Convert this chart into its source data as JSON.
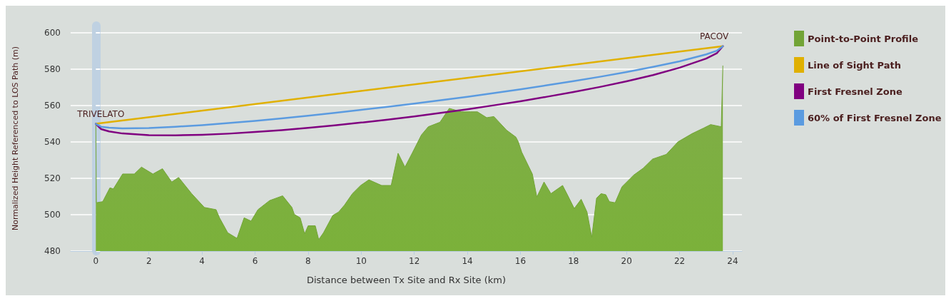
{
  "chart_data": {
    "type": "line",
    "xlabel": "Distance between Tx Site and Rx Site (km)",
    "ylabel": "Normalized Height Referenced to LOS Path (m)",
    "xlim": [
      -0.95,
      24.35
    ],
    "xticks": [
      0,
      2,
      4,
      6,
      8,
      10,
      12,
      14,
      16,
      18,
      20,
      22,
      24
    ],
    "ylim": [
      480,
      604
    ],
    "yticks": [
      480,
      500,
      520,
      540,
      560,
      580,
      600
    ],
    "grid": "y",
    "legend": "right",
    "marker": "none",
    "line_style": "solid",
    "annotations": [
      {
        "text": "TRIVELATO",
        "x": 0,
        "y": 550
      },
      {
        "text": "PACOV",
        "x": 23.63,
        "y": 592.7
      }
    ],
    "series": [
      {
        "name": "Point-to-Point Profile",
        "type": "area",
        "color": "#72a436",
        "x": [
          0,
          0.02,
          0.26,
          0.53,
          0.66,
          1.01,
          1.45,
          1.72,
          2.15,
          2.51,
          2.86,
          3.12,
          3.61,
          4.09,
          4.53,
          4.66,
          4.97,
          5.32,
          5.59,
          5.85,
          6.11,
          6.55,
          7.04,
          7.39,
          7.48,
          7.7,
          7.87,
          8.0,
          8.27,
          8.4,
          8.58,
          8.93,
          9.15,
          9.37,
          9.67,
          9.98,
          10.29,
          10.77,
          11.13,
          11.39,
          11.65,
          11.92,
          12.27,
          12.53,
          12.97,
          13.32,
          13.77,
          14.12,
          14.38,
          14.73,
          15.0,
          15.48,
          15.83,
          15.92,
          16.05,
          16.45,
          16.62,
          16.89,
          17.15,
          17.59,
          17.77,
          18.03,
          18.29,
          18.51,
          18.69,
          18.87,
          19.04,
          19.22,
          19.35,
          19.57,
          19.83,
          20.27,
          20.63,
          20.98,
          21.5,
          21.94,
          22.47,
          22.91,
          23.17,
          23.57,
          23.63
        ],
        "values": [
          550,
          506.6,
          507.2,
          514.8,
          514.2,
          522.4,
          522.4,
          526.2,
          522.4,
          525.3,
          518,
          520.5,
          511.6,
          504,
          502.8,
          498.3,
          490.1,
          487,
          498.3,
          496.5,
          502.8,
          507.8,
          510.4,
          504,
          500.2,
          498.3,
          489.5,
          493.9,
          493.9,
          486.3,
          490.1,
          499.6,
          501.5,
          505.3,
          511.6,
          516.1,
          519.2,
          516.1,
          516.1,
          533.8,
          526.2,
          533.8,
          543.9,
          548.4,
          550.9,
          558.5,
          556.6,
          556.6,
          556.6,
          553.4,
          554,
          546.5,
          542.7,
          540.1,
          534.4,
          522.4,
          509.7,
          518,
          511.6,
          516.1,
          511,
          503.4,
          508.5,
          501.5,
          487.6,
          509.1,
          511.6,
          511,
          507.2,
          506.6,
          515.4,
          521.8,
          525.6,
          530.6,
          533.2,
          540.1,
          544.6,
          547.7,
          549.6,
          548.4,
          581.9
        ]
      },
      {
        "name": "Line of Sight Path",
        "color": "#e0b000",
        "x": [
          0,
          23.63
        ],
        "values": [
          550,
          592.7
        ]
      },
      {
        "name": "First Fresnel Zone",
        "color": "#800080",
        "x": [
          0,
          0.2,
          0.5,
          1,
          2,
          3,
          4,
          5,
          6,
          7,
          8,
          9,
          10,
          11,
          12,
          13,
          14,
          15,
          16,
          17,
          18,
          19,
          20,
          21,
          22,
          23,
          23.4,
          23.63
        ],
        "values": [
          550,
          547.1,
          545.8,
          544.7,
          543.8,
          543.7,
          544.0,
          544.6,
          545.5,
          546.5,
          547.8,
          549.2,
          550.7,
          552.3,
          554.1,
          556.0,
          558.0,
          560.2,
          562.4,
          564.9,
          567.5,
          570.3,
          573.4,
          576.8,
          580.9,
          585.9,
          588.8,
          592.7
        ]
      },
      {
        "name": "60% of First Fresnel Zone",
        "color": "#5b9be0",
        "x": [
          0,
          0.2,
          0.5,
          1,
          2,
          3,
          4,
          5,
          6,
          7,
          8,
          9,
          10,
          11,
          12,
          13,
          14,
          15,
          16,
          17,
          18,
          19,
          20,
          21,
          22,
          23,
          23.4,
          23.63
        ],
        "values": [
          550,
          548.4,
          547.9,
          547.5,
          547.7,
          548.4,
          549.3,
          550.4,
          551.6,
          553.0,
          554.5,
          556.0,
          557.7,
          559.4,
          561.1,
          563.0,
          564.9,
          566.9,
          569.0,
          571.2,
          573.5,
          575.9,
          578.5,
          581.3,
          584.4,
          588.2,
          590.2,
          592.7
        ]
      }
    ]
  }
}
